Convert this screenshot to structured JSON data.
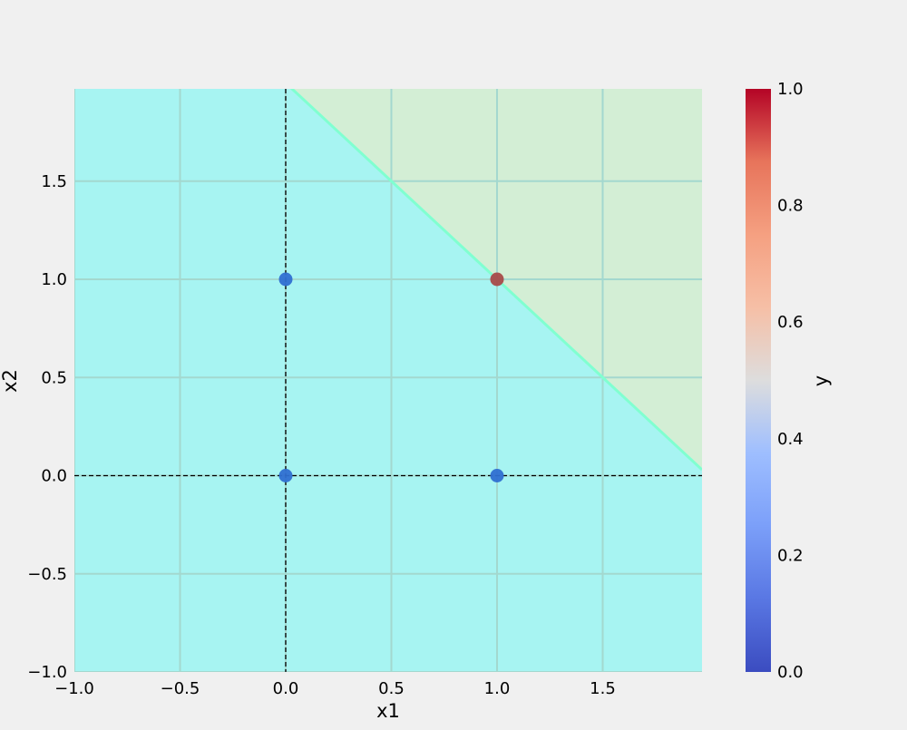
{
  "chart_data": {
    "type": "scatter",
    "title": "",
    "xlabel": "x1",
    "ylabel": "x2",
    "xlim": [
      -1.0,
      1.97
    ],
    "ylim": [
      -1.0,
      1.97
    ],
    "xticks": [
      -1.0,
      -0.5,
      0.0,
      0.5,
      1.0,
      1.5
    ],
    "yticks": [
      -1.0,
      -0.5,
      0.0,
      0.5,
      1.0,
      1.5
    ],
    "xtick_labels": [
      "−1.0",
      "−0.5",
      "0.0",
      "0.5",
      "1.0",
      "1.5"
    ],
    "ytick_labels": [
      "−1.0",
      "−0.5",
      "0.0",
      "0.5",
      "1.0",
      "1.5"
    ],
    "grid": true,
    "reference_lines": [
      {
        "orientation": "vertical",
        "x": 0.0,
        "style": "dashed"
      },
      {
        "orientation": "horizontal",
        "y": 0.0,
        "style": "dashed"
      }
    ],
    "decision_boundary": {
      "equation": "x1 + x2 = 2",
      "points": [
        [
          0.0,
          2.0
        ],
        [
          1.97,
          0.03
        ]
      ],
      "color": "#80ffd0",
      "region_above_color": "#d3eed5",
      "region_below_color": "#a7f4f2"
    },
    "points": [
      {
        "x1": 0.0,
        "x2": 0.0,
        "y": 0
      },
      {
        "x1": 0.0,
        "x2": 1.0,
        "y": 0
      },
      {
        "x1": 1.0,
        "x2": 0.0,
        "y": 0
      },
      {
        "x1": 1.0,
        "x2": 1.0,
        "y": 1
      }
    ],
    "point_colors": {
      "0": "#2f6fd1",
      "1": "#a84a49"
    },
    "colorbar": {
      "label": "y",
      "colormap": "coolwarm",
      "range": [
        0.0,
        1.0
      ],
      "ticks": [
        0.0,
        0.2,
        0.4,
        0.6,
        0.8,
        1.0
      ],
      "tick_labels": [
        "0.0",
        "0.2",
        "0.4",
        "0.6",
        "0.8",
        "1.0"
      ]
    }
  }
}
